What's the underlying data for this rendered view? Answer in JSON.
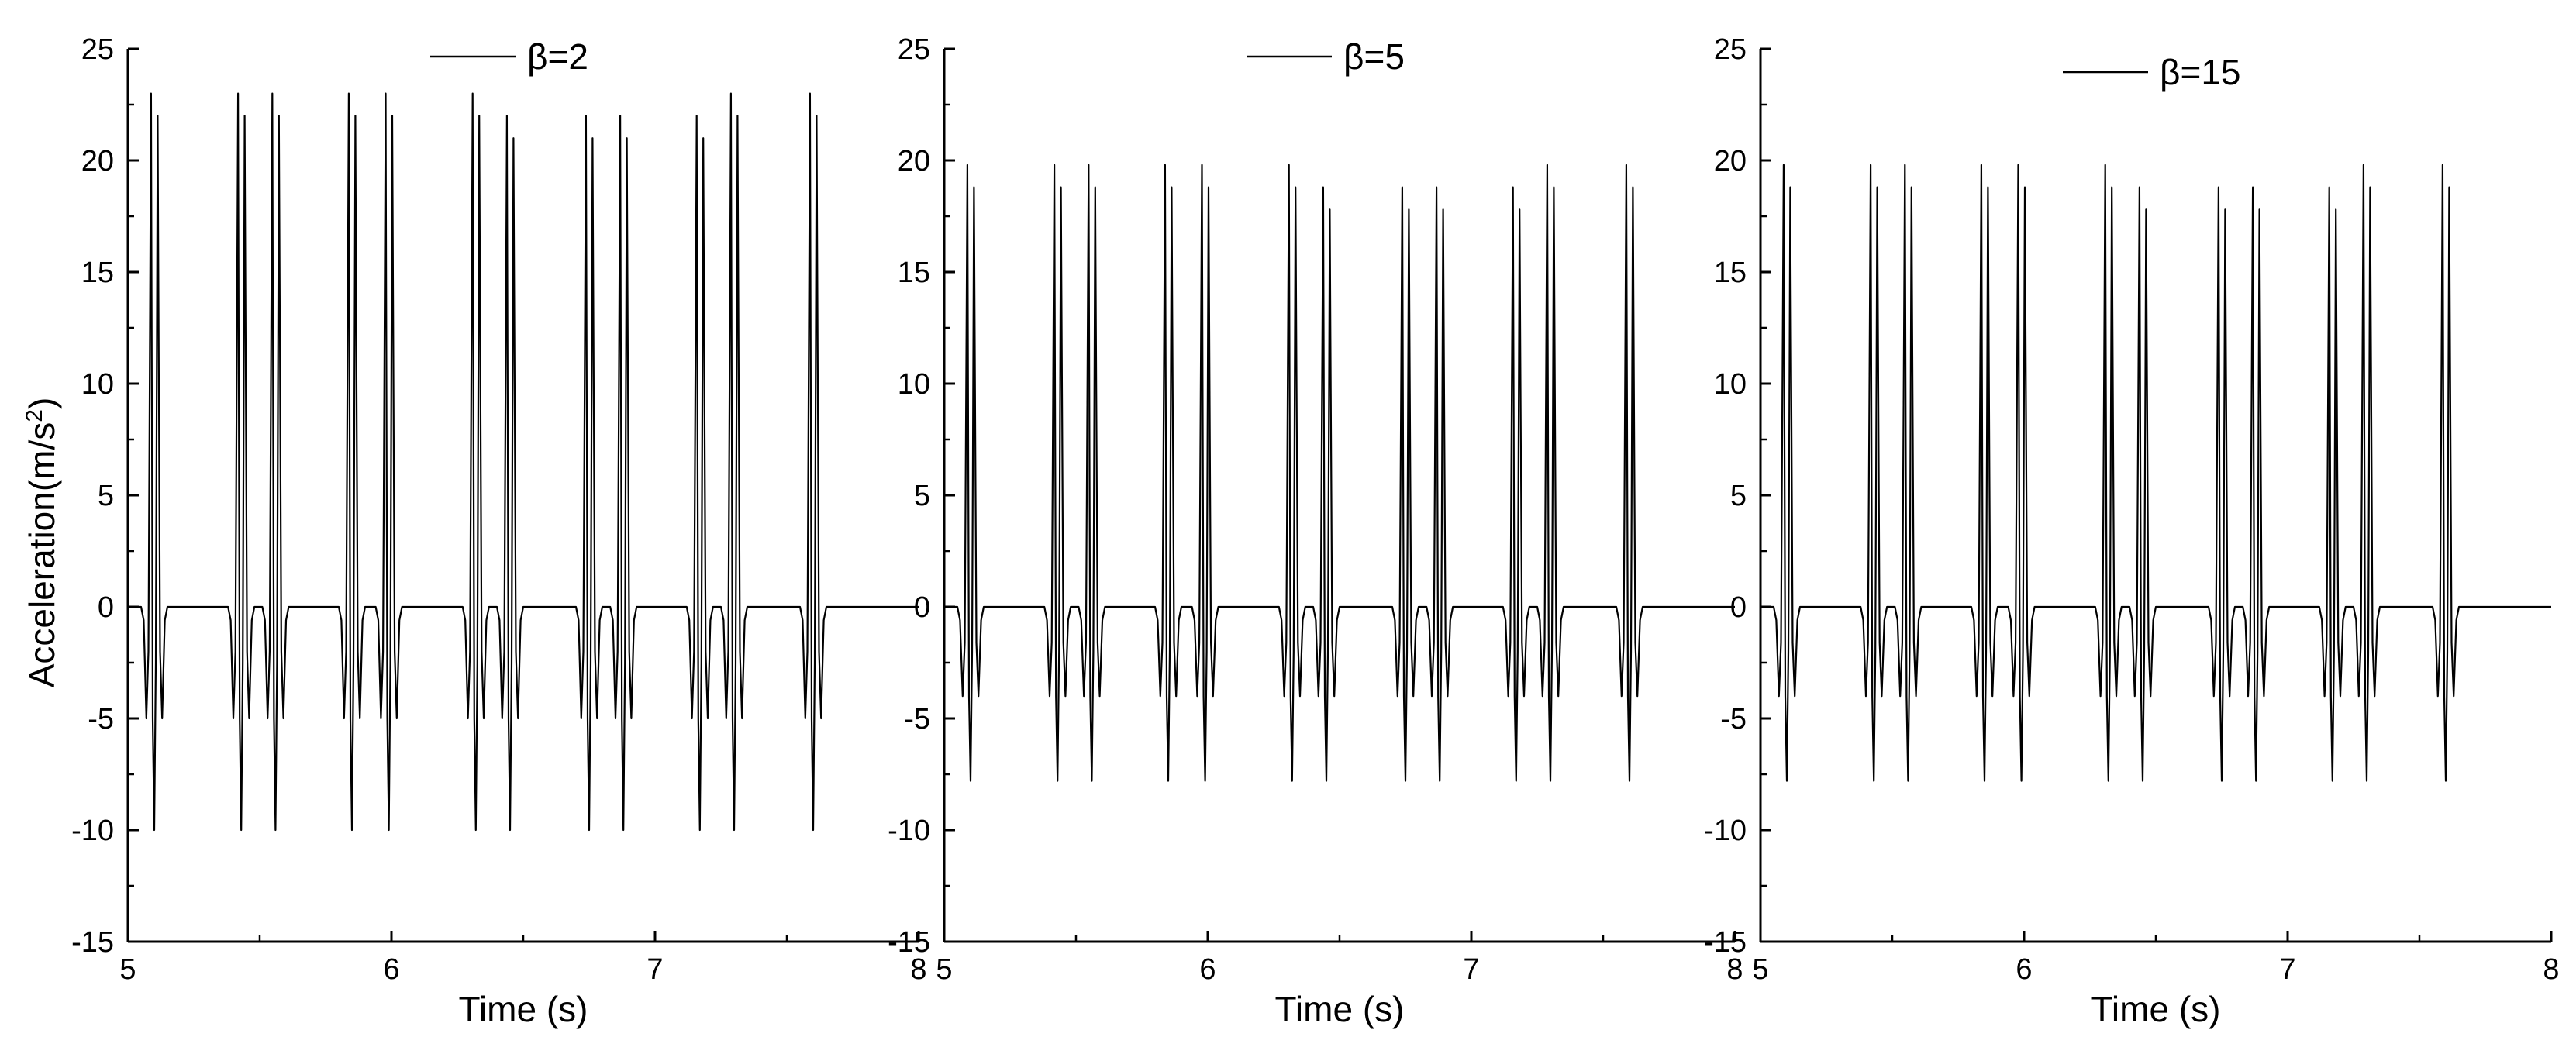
{
  "figure": {
    "ylabel_main": "Acceleration(m/s",
    "ylabel_sup": "2",
    "ylabel_end": ")"
  },
  "chart_data": [
    {
      "type": "line",
      "title": "",
      "xlabel": "Time (s)",
      "ylabel": "Acceleration(m/s2)",
      "xlim": [
        5,
        8
      ],
      "ylim": [
        -15,
        25
      ],
      "x_ticks": [
        5,
        6,
        7,
        8
      ],
      "y_ticks": [
        -15,
        -10,
        -5,
        0,
        5,
        10,
        15,
        20,
        25
      ],
      "grid": false,
      "legend_position": "top-center",
      "series": [
        {
          "name": "β=2",
          "color": "#000000",
          "baseline": 0,
          "x_end": 8.0,
          "pulses_desc": "groups of repeating acceleration spikes",
          "pulses": [
            {
              "t": 5.1,
              "peak": 23.0,
              "trough": -10.0,
              "side": -5.0
            },
            {
              "t": 5.43,
              "peak": 23.0,
              "trough": -10.0,
              "side": -5.0
            },
            {
              "t": 5.56,
              "peak": 23.0,
              "trough": -10.0,
              "side": -5.0
            },
            {
              "t": 5.85,
              "peak": 23.0,
              "trough": -10.0,
              "side": -5.0
            },
            {
              "t": 5.99,
              "peak": 23.0,
              "trough": -10.0,
              "side": -5.0
            },
            {
              "t": 6.32,
              "peak": 23.0,
              "trough": -10.0,
              "side": -5.0
            },
            {
              "t": 6.45,
              "peak": 22.0,
              "trough": -10.0,
              "side": -5.0
            },
            {
              "t": 6.75,
              "peak": 22.0,
              "trough": -10.0,
              "side": -5.0
            },
            {
              "t": 6.88,
              "peak": 22.0,
              "trough": -10.0,
              "side": -5.0
            },
            {
              "t": 7.17,
              "peak": 22.0,
              "trough": -10.0,
              "side": -5.0
            },
            {
              "t": 7.3,
              "peak": 23.0,
              "trough": -10.0,
              "side": -5.0
            },
            {
              "t": 7.6,
              "peak": 23.0,
              "trough": -10.0,
              "side": -5.0
            }
          ]
        }
      ]
    },
    {
      "type": "line",
      "title": "",
      "xlabel": "Time (s)",
      "ylabel": "",
      "xlim": [
        5,
        8
      ],
      "ylim": [
        -15,
        25
      ],
      "x_ticks": [
        5,
        6,
        7,
        8
      ],
      "y_ticks": [
        -15,
        -10,
        -5,
        0,
        5,
        10,
        15,
        20,
        25
      ],
      "grid": false,
      "legend_position": "top-center",
      "series": [
        {
          "name": "β=5",
          "color": "#000000",
          "baseline": 0,
          "x_end": 8.0,
          "pulses": [
            {
              "t": 5.1,
              "peak": 19.8,
              "trough": -7.8,
              "side": -4.0
            },
            {
              "t": 5.43,
              "peak": 19.8,
              "trough": -7.8,
              "side": -4.0
            },
            {
              "t": 5.56,
              "peak": 19.8,
              "trough": -7.8,
              "side": -4.0
            },
            {
              "t": 5.85,
              "peak": 19.8,
              "trough": -7.8,
              "side": -4.0
            },
            {
              "t": 5.99,
              "peak": 19.8,
              "trough": -7.8,
              "side": -4.0
            },
            {
              "t": 6.32,
              "peak": 19.8,
              "trough": -7.8,
              "side": -4.0
            },
            {
              "t": 6.45,
              "peak": 18.8,
              "trough": -7.8,
              "side": -4.0
            },
            {
              "t": 6.75,
              "peak": 18.8,
              "trough": -7.8,
              "side": -4.0
            },
            {
              "t": 6.88,
              "peak": 18.8,
              "trough": -7.8,
              "side": -4.0
            },
            {
              "t": 7.17,
              "peak": 18.8,
              "trough": -7.8,
              "side": -4.0
            },
            {
              "t": 7.3,
              "peak": 19.8,
              "trough": -7.8,
              "side": -4.0
            },
            {
              "t": 7.6,
              "peak": 19.8,
              "trough": -7.8,
              "side": -4.0
            }
          ]
        }
      ]
    },
    {
      "type": "line",
      "title": "",
      "xlabel": "Time (s)",
      "ylabel": "",
      "xlim": [
        5,
        8
      ],
      "ylim": [
        -15,
        25
      ],
      "x_ticks": [
        5,
        6,
        7,
        8
      ],
      "y_ticks": [
        -15,
        -10,
        -5,
        0,
        5,
        10,
        15,
        20,
        25
      ],
      "grid": false,
      "legend_position": "top-center",
      "series": [
        {
          "name": "β=15",
          "color": "#000000",
          "baseline": 0,
          "x_end": 8.0,
          "pulses": [
            {
              "t": 5.1,
              "peak": 19.8,
              "trough": -7.8,
              "side": -4.0
            },
            {
              "t": 5.43,
              "peak": 19.8,
              "trough": -7.8,
              "side": -4.0
            },
            {
              "t": 5.56,
              "peak": 19.8,
              "trough": -7.8,
              "side": -4.0
            },
            {
              "t": 5.85,
              "peak": 19.8,
              "trough": -7.8,
              "side": -4.0
            },
            {
              "t": 5.99,
              "peak": 19.8,
              "trough": -7.8,
              "side": -4.0
            },
            {
              "t": 6.32,
              "peak": 19.8,
              "trough": -7.8,
              "side": -4.0
            },
            {
              "t": 6.45,
              "peak": 18.8,
              "trough": -7.8,
              "side": -4.0
            },
            {
              "t": 6.75,
              "peak": 18.8,
              "trough": -7.8,
              "side": -4.0
            },
            {
              "t": 6.88,
              "peak": 18.8,
              "trough": -7.8,
              "side": -4.0
            },
            {
              "t": 7.17,
              "peak": 18.8,
              "trough": -7.8,
              "side": -4.0
            },
            {
              "t": 7.3,
              "peak": 19.8,
              "trough": -7.8,
              "side": -4.0
            },
            {
              "t": 7.6,
              "peak": 19.8,
              "trough": -7.8,
              "side": -4.0
            }
          ]
        }
      ]
    }
  ]
}
